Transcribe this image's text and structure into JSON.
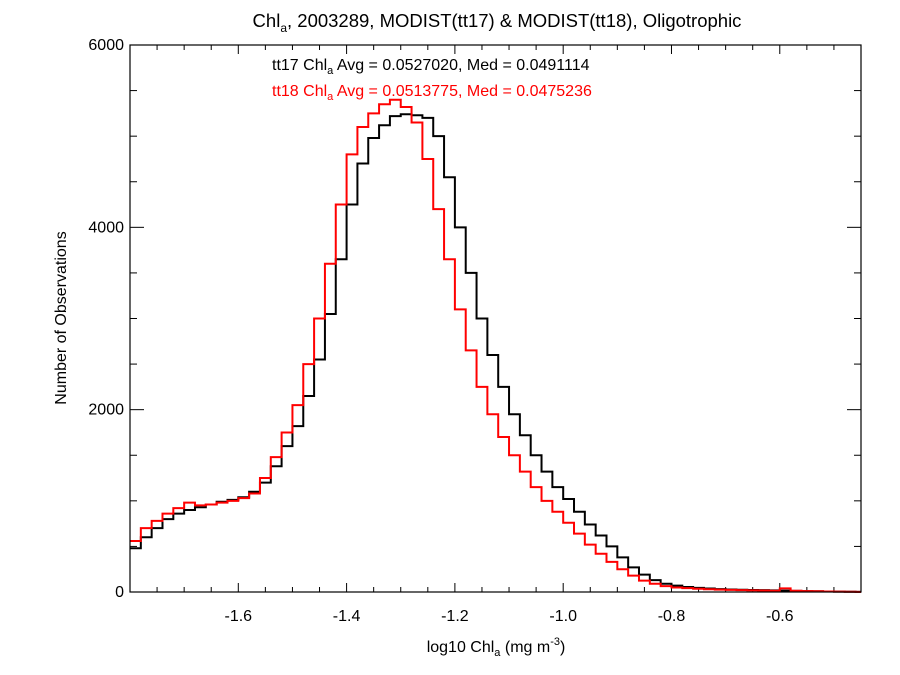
{
  "chart_data": {
    "type": "line",
    "step": true,
    "title_main": "Chl",
    "title_sub": "a",
    "title_rest": ", 2003289, MODIST(tt17) & MODIST(tt18), Oligotrophic",
    "xlabel_main": "log10 Chl",
    "xlabel_sub": "a",
    "xlabel_mid": " (mg m",
    "xlabel_sup": "-3",
    "xlabel_end": ")",
    "ylabel": "Number of Observations",
    "xlim": [
      -1.8,
      -0.45
    ],
    "ylim": [
      0,
      6000
    ],
    "xticks": [
      -1.6,
      -1.4,
      -1.2,
      -1.0,
      -0.8,
      -0.6
    ],
    "xtick_labels": [
      "-1.6",
      "-1.4",
      "-1.2",
      "-1.0",
      "-0.8",
      "-0.6"
    ],
    "yticks": [
      0,
      2000,
      4000,
      6000
    ],
    "ytick_labels": [
      "0",
      "2000",
      "4000",
      "6000"
    ],
    "grid": false,
    "legend": "top-center",
    "series": [
      {
        "name": "tt17",
        "color": "#000000",
        "annotation": {
          "pre": "tt17 Chl",
          "sub": "a",
          "post": " Avg = 0.0527020, Med = 0.0491114"
        },
        "x": [
          -1.8,
          -1.78,
          -1.76,
          -1.74,
          -1.72,
          -1.7,
          -1.68,
          -1.66,
          -1.64,
          -1.62,
          -1.6,
          -1.58,
          -1.56,
          -1.54,
          -1.52,
          -1.5,
          -1.48,
          -1.46,
          -1.44,
          -1.42,
          -1.4,
          -1.38,
          -1.36,
          -1.34,
          -1.32,
          -1.3,
          -1.28,
          -1.26,
          -1.24,
          -1.22,
          -1.2,
          -1.18,
          -1.16,
          -1.14,
          -1.12,
          -1.1,
          -1.08,
          -1.06,
          -1.04,
          -1.02,
          -1.0,
          -0.98,
          -0.96,
          -0.94,
          -0.92,
          -0.9,
          -0.88,
          -0.86,
          -0.84,
          -0.82,
          -0.8,
          -0.78,
          -0.76,
          -0.74,
          -0.72,
          -0.7,
          -0.68,
          -0.66,
          -0.64,
          -0.62,
          -0.6,
          -0.58,
          -0.56,
          -0.54,
          -0.52,
          -0.5,
          -0.48,
          -0.46
        ],
        "y": [
          480,
          600,
          700,
          800,
          860,
          900,
          930,
          960,
          990,
          1010,
          1040,
          1100,
          1200,
          1380,
          1600,
          1820,
          2150,
          2550,
          3050,
          3650,
          4250,
          4700,
          4980,
          5120,
          5220,
          5240,
          5230,
          5200,
          5000,
          4550,
          4000,
          3500,
          3000,
          2600,
          2250,
          1950,
          1720,
          1500,
          1320,
          1150,
          1020,
          880,
          740,
          620,
          500,
          380,
          270,
          190,
          130,
          90,
          70,
          55,
          45,
          38,
          32,
          28,
          25,
          22,
          20,
          18,
          15,
          12,
          10,
          8,
          6,
          4,
          3,
          2
        ]
      },
      {
        "name": "tt18",
        "color": "#ff0000",
        "annotation": {
          "pre": "tt18 Chl",
          "sub": "a",
          "post": " Avg = 0.0513775, Med = 0.0475236"
        },
        "x": [
          -1.8,
          -1.78,
          -1.76,
          -1.74,
          -1.72,
          -1.7,
          -1.68,
          -1.66,
          -1.64,
          -1.62,
          -1.6,
          -1.58,
          -1.56,
          -1.54,
          -1.52,
          -1.5,
          -1.48,
          -1.46,
          -1.44,
          -1.42,
          -1.4,
          -1.38,
          -1.36,
          -1.34,
          -1.32,
          -1.3,
          -1.28,
          -1.26,
          -1.24,
          -1.22,
          -1.2,
          -1.18,
          -1.16,
          -1.14,
          -1.12,
          -1.1,
          -1.08,
          -1.06,
          -1.04,
          -1.02,
          -1.0,
          -0.98,
          -0.96,
          -0.94,
          -0.92,
          -0.9,
          -0.88,
          -0.86,
          -0.84,
          -0.82,
          -0.8,
          -0.78,
          -0.76,
          -0.74,
          -0.72,
          -0.7,
          -0.68,
          -0.66,
          -0.64,
          -0.62,
          -0.6,
          -0.58,
          -0.56,
          -0.54,
          -0.52,
          -0.5,
          -0.48,
          -0.46
        ],
        "y": [
          560,
          700,
          780,
          860,
          920,
          980,
          950,
          960,
          980,
          1000,
          1030,
          1080,
          1250,
          1480,
          1750,
          2050,
          2500,
          3000,
          3600,
          4250,
          4800,
          5100,
          5250,
          5350,
          5400,
          5320,
          5150,
          4750,
          4200,
          3650,
          3100,
          2650,
          2250,
          1950,
          1700,
          1500,
          1320,
          1150,
          1000,
          880,
          760,
          640,
          520,
          420,
          330,
          250,
          180,
          125,
          90,
          65,
          50,
          42,
          36,
          30,
          26,
          23,
          20,
          18,
          16,
          14,
          40,
          14,
          10,
          8,
          6,
          4,
          3,
          2
        ]
      }
    ]
  }
}
